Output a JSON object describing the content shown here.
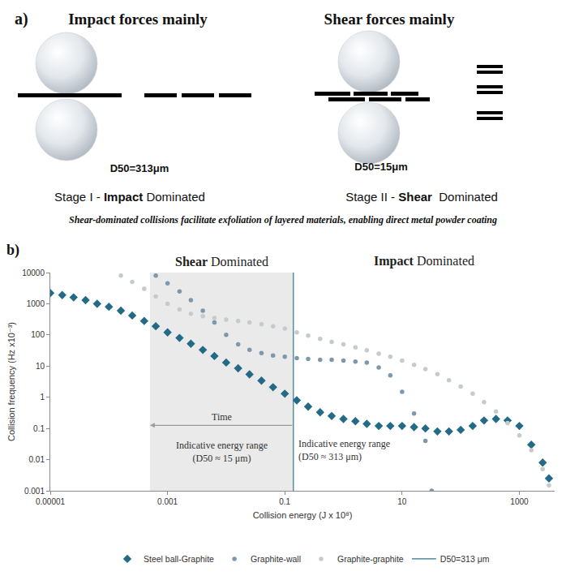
{
  "panel_a": {
    "label": "a)",
    "left": {
      "title": "Impact forces mainly",
      "d50": "D50=313μm",
      "stage": {
        "prefix": "Stage I - ",
        "bold": "Impact",
        "suffix": " Dominated"
      }
    },
    "right": {
      "title": "Shear forces mainly",
      "d50": "D50=15μm",
      "stage": {
        "prefix": "Stage II - ",
        "bold": "Shear",
        "suffix": "  Dominated"
      }
    },
    "caption": "Shear-dominated collisions facilitate exfoliation of layered materials, enabling direct metal powder coating"
  },
  "chart_data": {
    "type": "scatter",
    "label": "b)",
    "log": true,
    "grid": false,
    "legend": "bottom",
    "x_label": "Collision energy (J x 10⁸)",
    "y_label": "Collision frequency (Hz x10⁻³)",
    "xlim": [
      1e-05,
      4000
    ],
    "xticks": [
      1e-05,
      0.001,
      0.1,
      10,
      1000
    ],
    "ylim": [
      0.001,
      10000
    ],
    "yticks": [
      0.001,
      0.01,
      0.1,
      1,
      10,
      100,
      1000,
      10000
    ],
    "shear_heading": {
      "bold": "Shear",
      "rest": " Dominated"
    },
    "impact_heading": {
      "bold": "Impact",
      "rest": " Dominated"
    },
    "shaded_range": [
      0.0005,
      0.14
    ],
    "arrow_label": "Time",
    "shear_note": [
      "Indicative energy range",
      "(D50 ≈ 15 μm)"
    ],
    "impact_note": [
      "Indicative energy range",
      "(D50 ≈ 313 μm)"
    ],
    "threshold": {
      "name": "D50=313 μm",
      "value": 0.14,
      "color": "#2f7592",
      "line_style": "solid"
    },
    "series": [
      {
        "name": "Steel ball-Graphite",
        "color": "#236a87",
        "marker": "diamond",
        "x": [
          1e-05,
          1.6e-05,
          2.5e-05,
          4e-05,
          6.3e-05,
          0.0001,
          0.00016,
          0.00025,
          0.0004,
          0.00063,
          0.001,
          0.0016,
          0.0025,
          0.004,
          0.0063,
          0.01,
          0.016,
          0.025,
          0.04,
          0.063,
          0.1,
          0.16,
          0.25,
          0.4,
          0.63,
          1,
          1.6,
          2.5,
          4,
          6.3,
          10,
          16,
          25,
          40,
          63,
          100,
          160,
          250,
          400,
          630,
          1000,
          1600,
          2500,
          3200
        ],
        "values": [
          2200,
          1900,
          1600,
          1300,
          1000,
          800,
          600,
          420,
          280,
          190,
          120,
          80,
          52,
          33,
          21,
          13,
          8.5,
          5.4,
          3.4,
          2.1,
          1.3,
          0.8,
          0.5,
          0.33,
          0.25,
          0.2,
          0.17,
          0.14,
          0.12,
          0.12,
          0.12,
          0.11,
          0.1,
          0.08,
          0.08,
          0.09,
          0.12,
          0.18,
          0.2,
          0.18,
          0.12,
          0.03,
          0.008,
          0.0025
        ]
      },
      {
        "name": "Graphite-wall",
        "color": "#7d98ad",
        "marker": "circle",
        "x": [
          0.00063,
          0.001,
          0.0016,
          0.0025,
          0.004,
          0.0063,
          0.01,
          0.016,
          0.025,
          0.04,
          0.063,
          0.1,
          0.16,
          0.25,
          0.4,
          0.63,
          1,
          1.6,
          2.5,
          4,
          6.3,
          10,
          16,
          25,
          32
        ],
        "values": [
          8000,
          4500,
          2500,
          1300,
          600,
          250,
          100,
          50,
          33,
          26,
          22,
          20,
          18,
          17,
          16,
          16,
          15,
          14,
          13,
          9,
          5,
          1.5,
          0.3,
          0.04,
          0.001
        ]
      },
      {
        "name": "Graphite-graphite",
        "color": "#c5cacd",
        "marker": "circle",
        "x": [
          0.00016,
          0.00025,
          0.0004,
          0.00063,
          0.001,
          0.0016,
          0.0025,
          0.004,
          0.0063,
          0.01,
          0.016,
          0.025,
          0.04,
          0.063,
          0.1,
          0.16,
          0.25,
          0.4,
          0.63,
          1,
          1.6,
          2.5,
          4,
          6.3,
          10,
          16,
          25,
          40,
          63,
          100,
          160,
          250,
          400,
          630,
          1000,
          1600,
          2500,
          3200
        ],
        "values": [
          8000,
          5000,
          3000,
          1700,
          1000,
          650,
          480,
          400,
          350,
          310,
          280,
          250,
          220,
          190,
          160,
          120,
          95,
          75,
          60,
          50,
          40,
          32,
          25,
          20,
          15,
          11,
          8,
          5.5,
          3.5,
          2.2,
          1.3,
          0.7,
          0.35,
          0.15,
          0.06,
          0.02,
          0.005,
          0.0015
        ]
      }
    ]
  }
}
